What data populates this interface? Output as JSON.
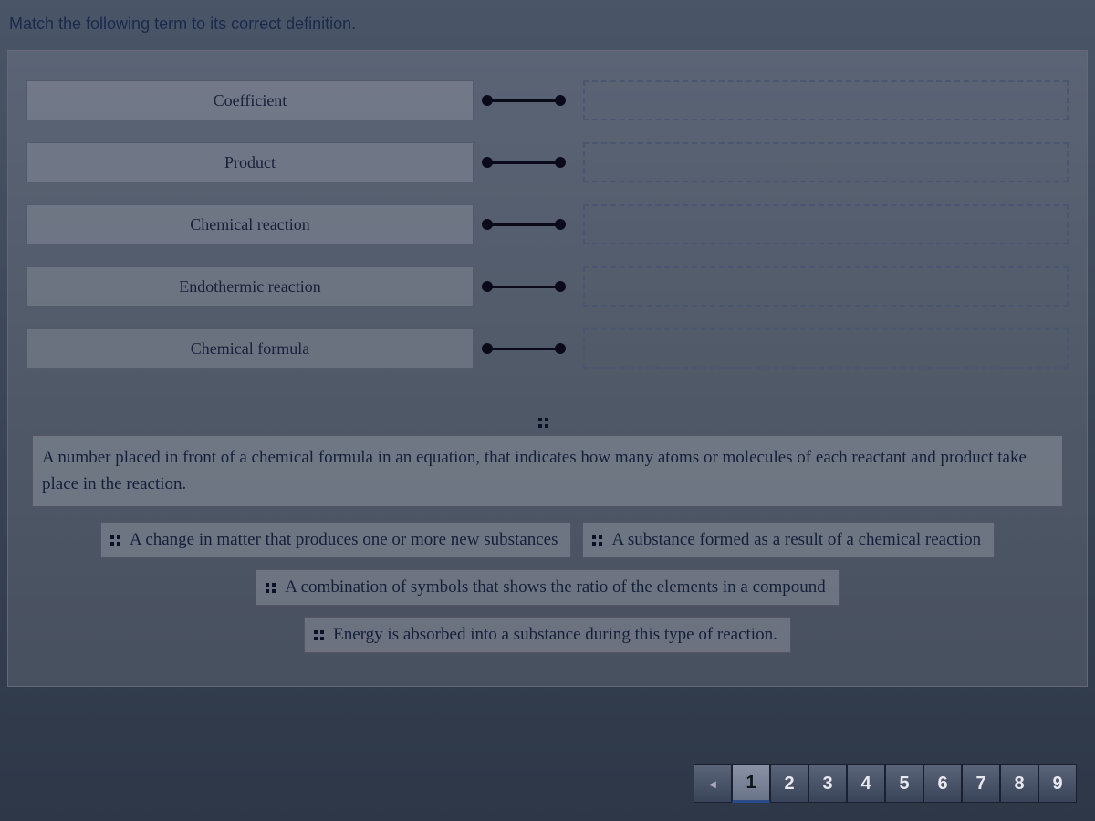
{
  "instruction": "Match the following term to its correct definition.",
  "terms": [
    {
      "label": "Coefficient"
    },
    {
      "label": "Product"
    },
    {
      "label": "Chemical reaction"
    },
    {
      "label": "Endothermic reaction"
    },
    {
      "label": "Chemical formula"
    }
  ],
  "answers": {
    "wide": "A number placed in front of a chemical formula in an equation, that indicates how many atoms or molecules of each reactant and product take place in the reaction.",
    "row1a": "A change in matter that produces one or more new substances",
    "row1b": "A substance formed as a result of a chemical reaction",
    "row2": "A combination of symbols that shows the ratio of the elements in a compound",
    "row3": "Energy is absorbed into a substance during this type of reaction."
  },
  "pagination": {
    "prev": "◂",
    "pages": [
      "1",
      "2",
      "3",
      "4",
      "5",
      "6",
      "7",
      "8",
      "9"
    ],
    "active": 0
  },
  "colors": {
    "bg_top": "#4a5568",
    "bg_bottom": "#2d3748",
    "text": "#1a2a4a",
    "border": "#555a6a",
    "dashed": "#4a5570"
  }
}
